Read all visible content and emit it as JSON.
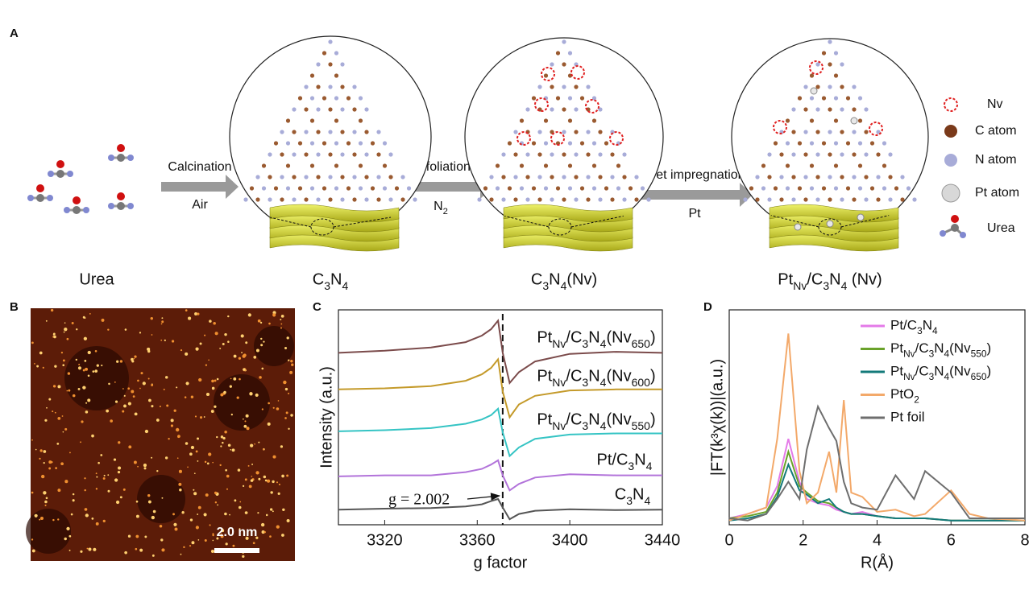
{
  "panel_labels": [
    "A",
    "B",
    "C",
    "D"
  ],
  "schematic": {
    "steps": [
      "Urea",
      "C3N4",
      "C3N4(Nv)",
      "PtNv/C3N4 (Nv)"
    ],
    "arrows": [
      {
        "top": "Calcination",
        "bottom": "Air"
      },
      {
        "top": "Exfoliation",
        "bottom": "N2"
      },
      {
        "top": "Wet impregnation",
        "bottom": "Pt"
      }
    ],
    "legend": [
      "Nv",
      "C atom",
      "N atom",
      "Pt atom",
      "Urea"
    ]
  },
  "image": {
    "scale_bar": "2.0 nm"
  },
  "chart_data": [
    {
      "type": "line",
      "x_label": "g factor",
      "y_label": "Intensity (a.u.)",
      "xlim": [
        3300,
        3440
      ],
      "xticks": [
        3320,
        3360,
        3400,
        3440
      ],
      "ylim": [
        0,
        10
      ],
      "annotation": "g = 2.002",
      "marker_x": 3371,
      "x": [
        3300,
        3320,
        3340,
        3355,
        3362,
        3366,
        3369,
        3371,
        3374,
        3378,
        3385,
        3400,
        3420,
        3440
      ],
      "series": [
        {
          "name": "PtNv/C3N4(Nv650)",
          "color": "#7b4b4b",
          "values": [
            8.0,
            8.1,
            8.25,
            8.5,
            8.8,
            9.1,
            9.5,
            8.0,
            6.6,
            7.1,
            7.6,
            7.95,
            8.05,
            8.0
          ]
        },
        {
          "name": "PtNv/C3N4(Nv600)",
          "color": "#c49a2a",
          "values": [
            6.3,
            6.35,
            6.45,
            6.7,
            7.0,
            7.3,
            7.7,
            6.2,
            5.0,
            5.6,
            6.0,
            6.25,
            6.3,
            6.3
          ]
        },
        {
          "name": "PtNv/C3N4(Nv550)",
          "color": "#35c4c4",
          "values": [
            4.35,
            4.4,
            4.5,
            4.7,
            4.9,
            5.1,
            5.4,
            4.3,
            3.2,
            3.6,
            4.0,
            4.2,
            4.25,
            4.25
          ]
        },
        {
          "name": "Pt/C3N4",
          "color": "#b273da",
          "values": [
            2.25,
            2.3,
            2.3,
            2.45,
            2.6,
            2.8,
            3.0,
            2.3,
            1.6,
            1.9,
            2.2,
            2.35,
            2.3,
            2.3
          ]
        },
        {
          "name": "C3N4",
          "color": "#555555",
          "values": [
            0.7,
            0.75,
            0.78,
            0.85,
            0.95,
            1.1,
            1.2,
            0.8,
            0.26,
            0.5,
            0.65,
            0.72,
            0.68,
            0.7
          ]
        }
      ]
    },
    {
      "type": "line",
      "x_label": "R(Å)",
      "y_label": "|FT(k³χ(k))|(a.u.)",
      "xlim": [
        0,
        8
      ],
      "xticks": [
        0,
        2,
        4,
        6,
        8
      ],
      "ylim": [
        0,
        10
      ],
      "x": [
        0,
        0.5,
        1,
        1.3,
        1.6,
        1.9,
        2.1,
        2.4,
        2.7,
        2.9,
        3.1,
        3.3,
        3.6,
        4,
        4.5,
        5,
        5.3,
        6,
        6.5,
        7,
        8
      ],
      "series": [
        {
          "name": "Pt/C3N4",
          "color": "#e47ae8",
          "values": [
            0.3,
            0.5,
            0.8,
            1.8,
            4.0,
            2.0,
            1.2,
            1.0,
            0.9,
            0.7,
            0.6,
            0.5,
            0.6,
            0.4,
            0.3,
            0.3,
            0.3,
            0.2,
            0.2,
            0.2,
            0.2
          ]
        },
        {
          "name": "PtNv/C3N4(Nv550)",
          "color": "#6aa22a",
          "values": [
            0.3,
            0.4,
            0.6,
            1.5,
            3.4,
            1.8,
            1.5,
            1.1,
            1.0,
            0.8,
            0.6,
            0.5,
            0.5,
            0.4,
            0.3,
            0.3,
            0.3,
            0.2,
            0.2,
            0.2,
            0.2
          ]
        },
        {
          "name": "PtNv/C3N4(Nv650)",
          "color": "#137a7a",
          "values": [
            0.2,
            0.3,
            0.5,
            1.3,
            2.8,
            1.6,
            1.4,
            1.0,
            1.2,
            0.8,
            0.6,
            0.5,
            0.5,
            0.4,
            0.3,
            0.3,
            0.3,
            0.2,
            0.2,
            0.2,
            0.2
          ]
        },
        {
          "name": "PtO2",
          "color": "#f3a96a",
          "values": [
            0.2,
            0.5,
            0.8,
            4.0,
            8.9,
            2.5,
            1.0,
            1.5,
            3.4,
            1.5,
            5.8,
            1.5,
            1.3,
            0.6,
            0.7,
            0.4,
            0.5,
            1.6,
            0.5,
            0.3,
            0.2
          ]
        },
        {
          "name": "Pt foil",
          "color": "#6e6e6e",
          "values": [
            0.3,
            0.2,
            0.5,
            1.2,
            2.0,
            1.2,
            3.5,
            5.5,
            4.5,
            3.9,
            2.0,
            1.0,
            0.8,
            0.7,
            2.3,
            1.2,
            2.5,
            1.5,
            0.3,
            0.3,
            0.3
          ]
        }
      ]
    }
  ]
}
